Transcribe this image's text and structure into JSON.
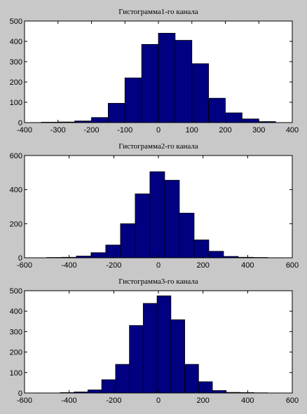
{
  "figure": {
    "background": "#c8c8c8",
    "plot_bg": "#ffffff",
    "bar_fill": "#000080",
    "bar_stroke": "#000000"
  },
  "chart_data": [
    {
      "type": "bar",
      "title": "Гистограмма1-го канала",
      "xlim": [
        -400,
        400
      ],
      "ylim": [
        0,
        500
      ],
      "xticks": [
        -400,
        -300,
        -200,
        -100,
        0,
        100,
        200,
        300,
        400
      ],
      "yticks": [
        0,
        100,
        200,
        300,
        400,
        500
      ],
      "bin_width": 50,
      "bins": [
        {
          "x0": -350,
          "value": 2
        },
        {
          "x0": -300,
          "value": 3
        },
        {
          "x0": -250,
          "value": 8
        },
        {
          "x0": -200,
          "value": 25
        },
        {
          "x0": -150,
          "value": 95
        },
        {
          "x0": -100,
          "value": 220
        },
        {
          "x0": -50,
          "value": 385
        },
        {
          "x0": 0,
          "value": 440
        },
        {
          "x0": 50,
          "value": 405
        },
        {
          "x0": 100,
          "value": 290
        },
        {
          "x0": 150,
          "value": 120
        },
        {
          "x0": 200,
          "value": 48
        },
        {
          "x0": 250,
          "value": 18
        },
        {
          "x0": 300,
          "value": 5
        }
      ]
    },
    {
      "type": "bar",
      "title": "Гистограмма2-го канала",
      "xlim": [
        -600,
        600
      ],
      "ylim": [
        0,
        600
      ],
      "xticks": [
        -600,
        -400,
        -200,
        0,
        200,
        400,
        600
      ],
      "yticks": [
        0,
        200,
        400,
        600
      ],
      "bin_width": 66,
      "bins": [
        {
          "x0": -500,
          "value": 2
        },
        {
          "x0": -434,
          "value": 3
        },
        {
          "x0": -368,
          "value": 10
        },
        {
          "x0": -302,
          "value": 30
        },
        {
          "x0": -236,
          "value": 75
        },
        {
          "x0": -170,
          "value": 200
        },
        {
          "x0": -104,
          "value": 375
        },
        {
          "x0": -38,
          "value": 505
        },
        {
          "x0": 28,
          "value": 455
        },
        {
          "x0": 94,
          "value": 262
        },
        {
          "x0": 160,
          "value": 105
        },
        {
          "x0": 226,
          "value": 38
        },
        {
          "x0": 292,
          "value": 8
        },
        {
          "x0": 358,
          "value": 3
        },
        {
          "x0": 424,
          "value": 2
        }
      ]
    },
    {
      "type": "bar",
      "title": "Гистограмма3-го канала",
      "xlim": [
        -600,
        600
      ],
      "ylim": [
        0,
        500
      ],
      "xticks": [
        -600,
        -400,
        -200,
        0,
        200,
        400,
        600
      ],
      "yticks": [
        0,
        100,
        200,
        300,
        400,
        500
      ],
      "bin_width": 62,
      "bins": [
        {
          "x0": -440,
          "value": 2
        },
        {
          "x0": -378,
          "value": 5
        },
        {
          "x0": -316,
          "value": 15
        },
        {
          "x0": -254,
          "value": 65
        },
        {
          "x0": -192,
          "value": 140
        },
        {
          "x0": -130,
          "value": 330
        },
        {
          "x0": -68,
          "value": 438
        },
        {
          "x0": -6,
          "value": 475
        },
        {
          "x0": 56,
          "value": 358
        },
        {
          "x0": 118,
          "value": 140
        },
        {
          "x0": 180,
          "value": 55
        },
        {
          "x0": 242,
          "value": 12
        },
        {
          "x0": 304,
          "value": 3
        },
        {
          "x0": 366,
          "value": 2
        },
        {
          "x0": 428,
          "value": 1
        }
      ]
    }
  ]
}
